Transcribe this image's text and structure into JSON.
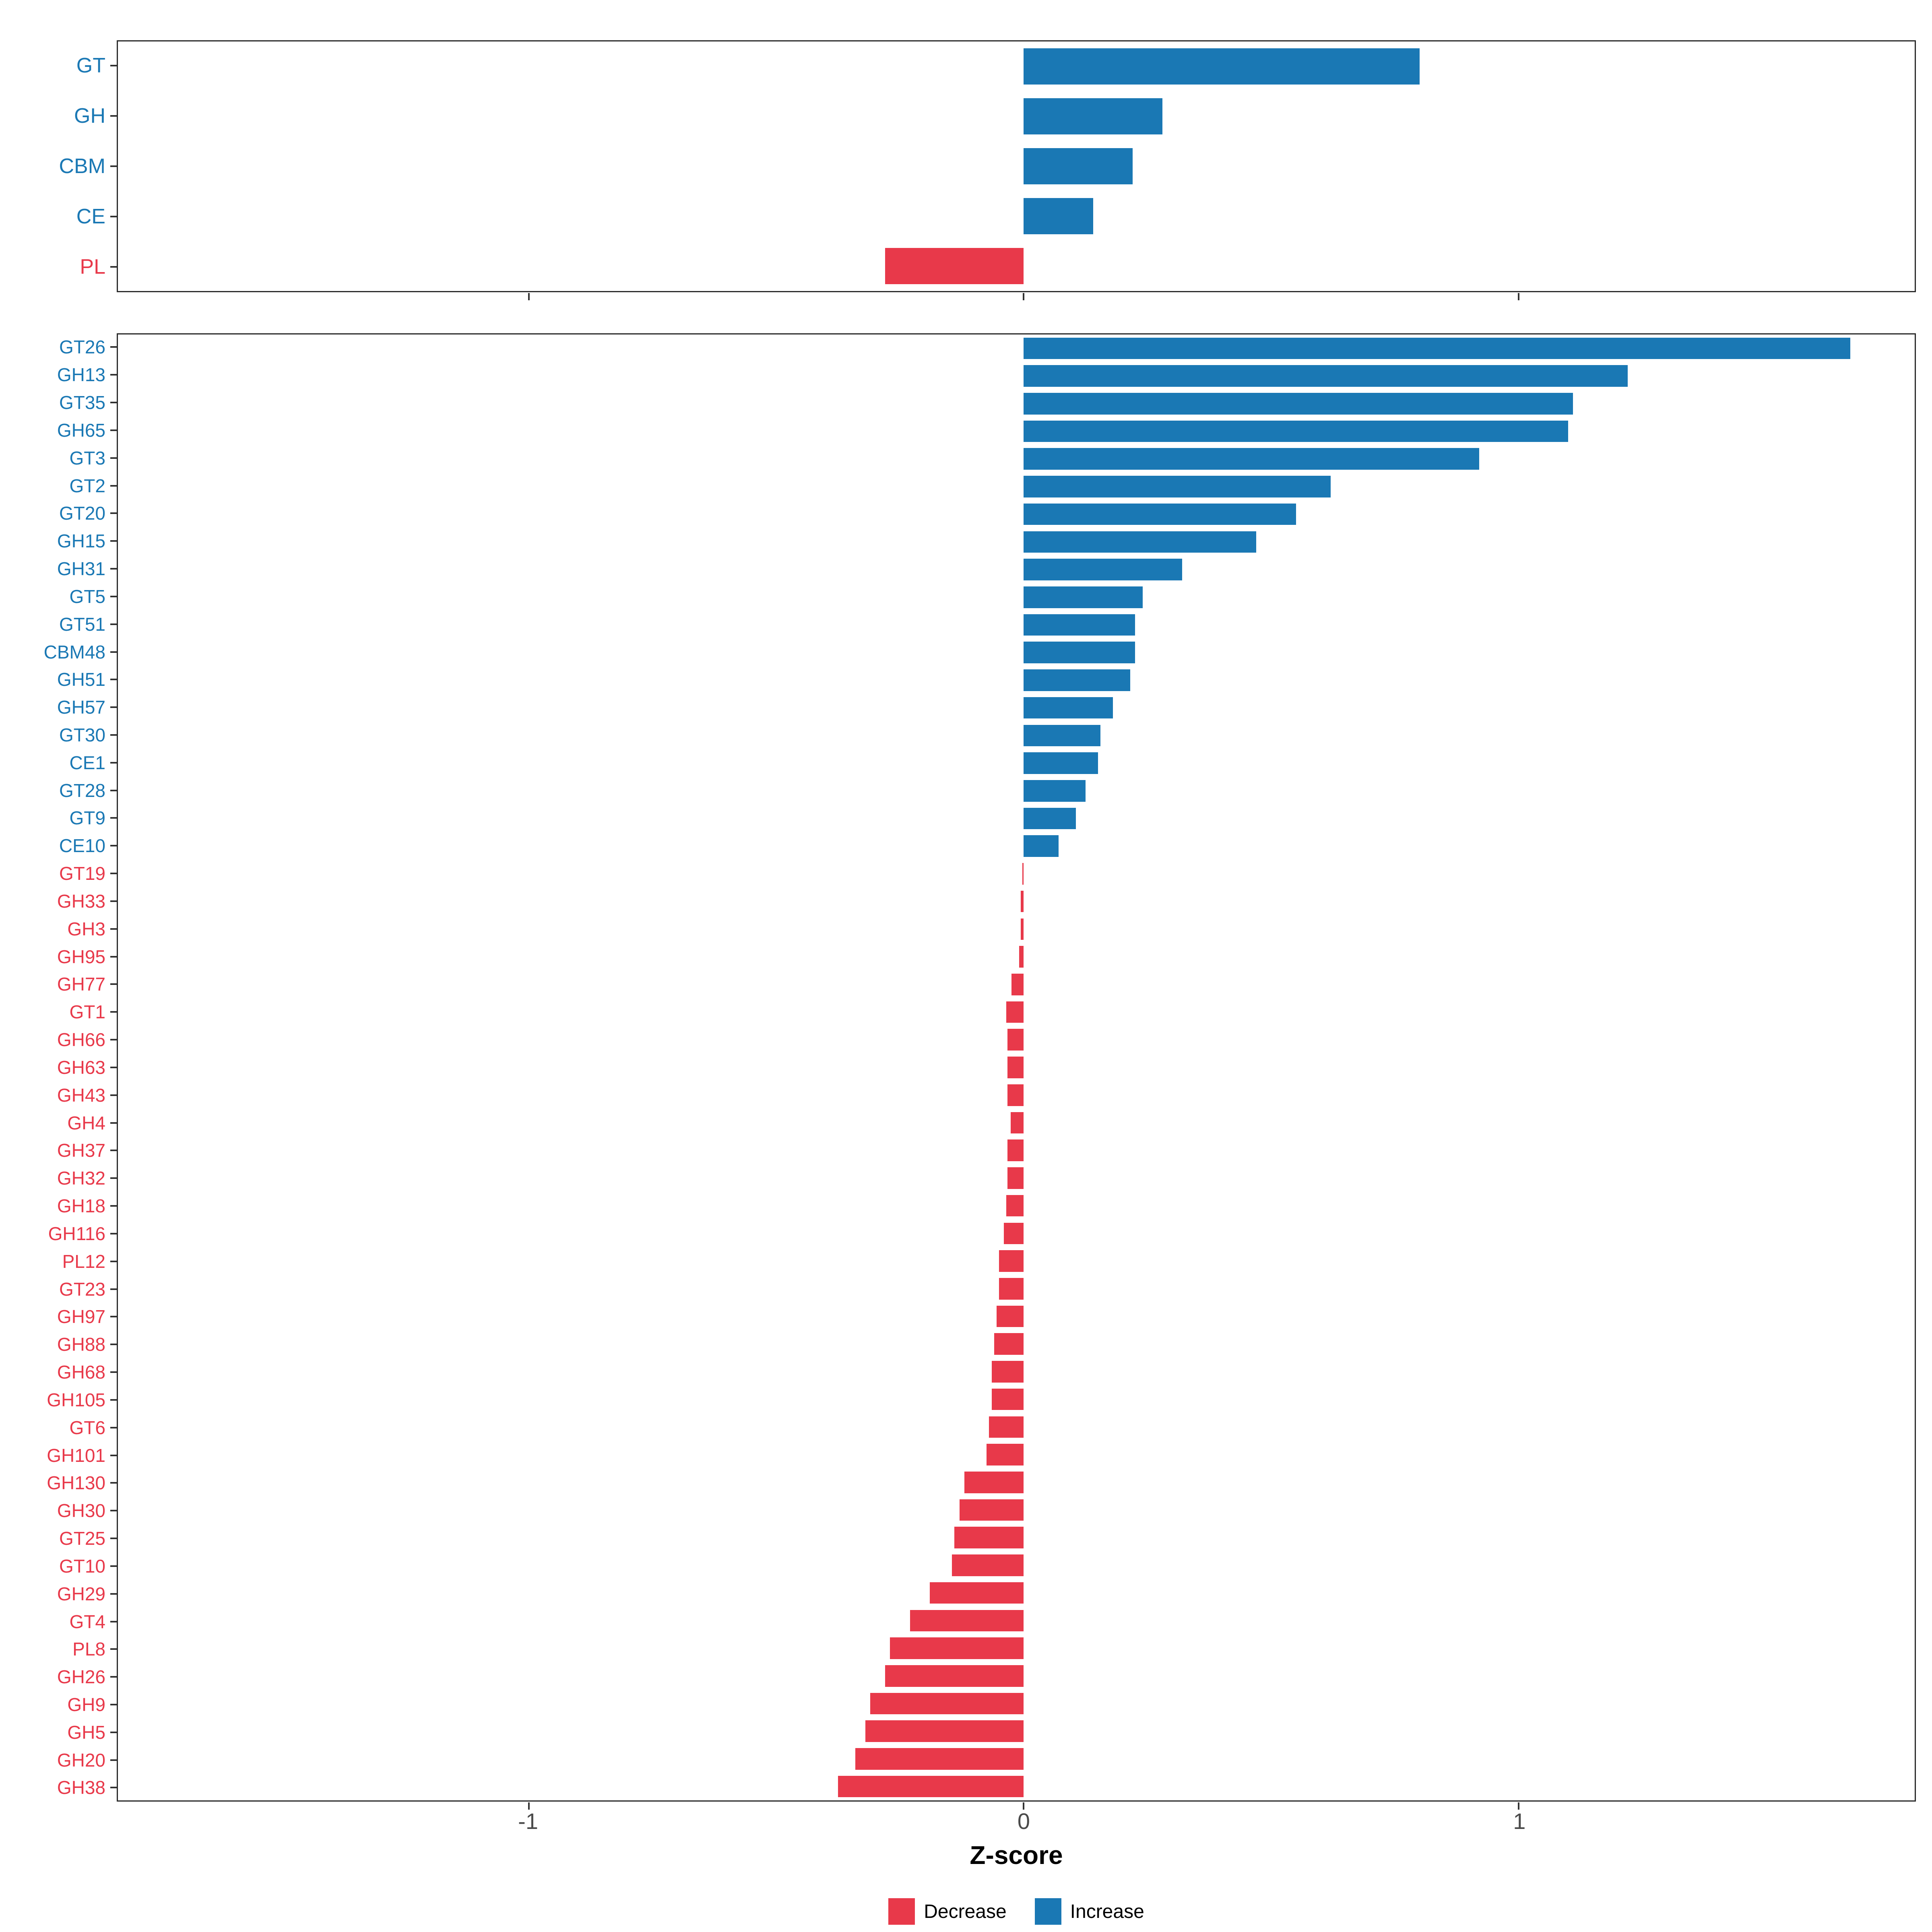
{
  "colors": {
    "increase": "#1A78B4",
    "decrease": "#E8394A"
  },
  "axis": {
    "xlabel": "Z-score",
    "tick_labels": [
      "-1",
      "0",
      "1"
    ],
    "tick_values": [
      -1,
      0,
      1
    ]
  },
  "legend": {
    "items": [
      {
        "label": "Decrease",
        "color_key": "decrease"
      },
      {
        "label": "Increase",
        "color_key": "increase"
      }
    ]
  },
  "chart_data": [
    {
      "type": "bar",
      "orientation": "horizontal",
      "panel": "cazyme-class-summary",
      "categories": [
        "GT",
        "GH",
        "CBM",
        "CE",
        "PL"
      ],
      "values": [
        0.8,
        0.28,
        0.22,
        0.14,
        -0.28
      ],
      "xlabel": "Z-score",
      "xlim": [
        -1.83,
        1.8
      ],
      "xticks": [
        -1,
        0,
        1
      ],
      "grid": false,
      "legend_position": "bottom"
    },
    {
      "type": "bar",
      "orientation": "horizontal",
      "panel": "cazyme-family-detail",
      "categories": [
        "GT26",
        "GH13",
        "GT35",
        "GH65",
        "GT3",
        "GT2",
        "GT20",
        "GH15",
        "GH31",
        "GT5",
        "GT51",
        "CBM48",
        "GH51",
        "GH57",
        "GT30",
        "CE1",
        "GT28",
        "GT9",
        "CE10",
        "GT19",
        "GH33",
        "GH3",
        "GH95",
        "GH77",
        "GT1",
        "GH66",
        "GH63",
        "GH43",
        "GH4",
        "GH37",
        "GH32",
        "GH18",
        "GH116",
        "PL12",
        "GT23",
        "GH97",
        "GH88",
        "GH68",
        "GH105",
        "GT6",
        "GH101",
        "GH130",
        "GH30",
        "GT25",
        "GT10",
        "GH29",
        "GT4",
        "PL8",
        "GH26",
        "GH9",
        "GH5",
        "GH20",
        "GH38"
      ],
      "values": [
        1.67,
        1.22,
        1.11,
        1.1,
        0.92,
        0.62,
        0.55,
        0.47,
        0.32,
        0.24,
        0.225,
        0.225,
        0.215,
        0.18,
        0.155,
        0.15,
        0.125,
        0.105,
        0.07,
        -0.003,
        -0.006,
        -0.006,
        -0.009,
        -0.025,
        -0.035,
        -0.033,
        -0.033,
        -0.033,
        -0.026,
        -0.033,
        -0.033,
        -0.035,
        -0.04,
        -0.05,
        -0.05,
        -0.055,
        -0.06,
        -0.065,
        -0.065,
        -0.07,
        -0.075,
        -0.12,
        -0.13,
        -0.14,
        -0.145,
        -0.19,
        -0.23,
        -0.27,
        -0.28,
        -0.31,
        -0.32,
        -0.34,
        -0.375
      ],
      "xlabel": "Z-score",
      "xlim": [
        -1.83,
        1.8
      ],
      "xticks": [
        -1,
        0,
        1
      ],
      "grid": false,
      "legend_position": "bottom"
    }
  ]
}
